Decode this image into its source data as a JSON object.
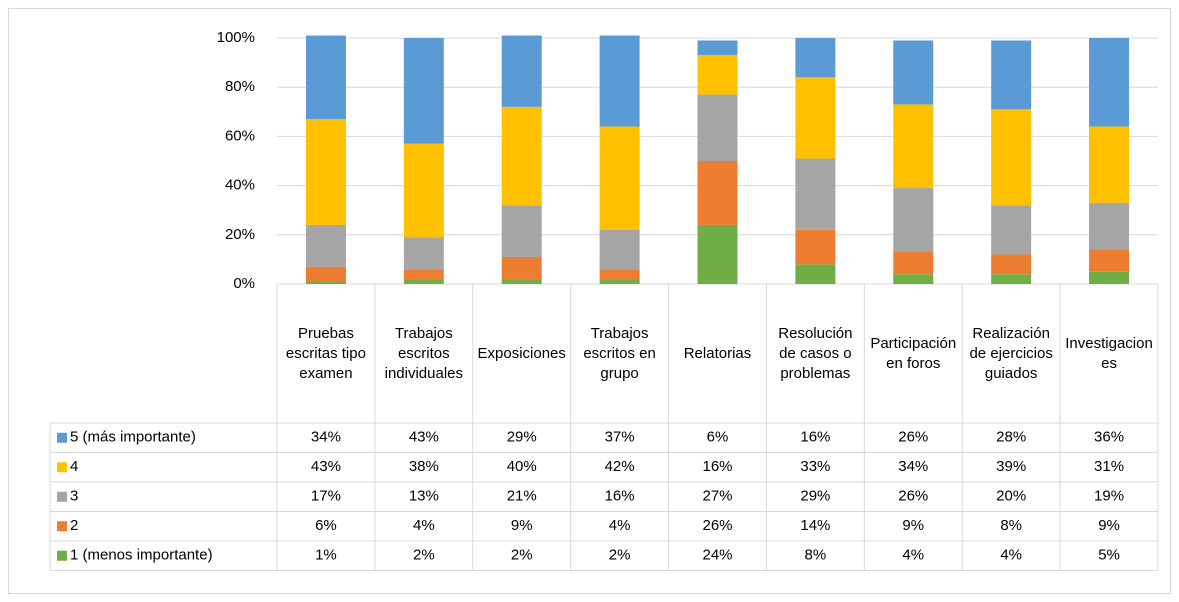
{
  "chart_data": {
    "type": "bar",
    "stacked": true,
    "categories": [
      "Pruebas escritas tipo examen",
      "Trabajos escritos individuales",
      "Exposiciones",
      "Trabajos escritos en grupo",
      "Relatorias",
      "Resolución de casos o problemas",
      "Participación en foros",
      "Realización de ejercicios guiados",
      "Investigaciones"
    ],
    "series": [
      {
        "name": "5 (más importante)",
        "color": "#5b9bd5",
        "values": [
          34,
          43,
          29,
          37,
          6,
          16,
          26,
          28,
          36
        ],
        "value_labels": [
          "34%",
          "43%",
          "29%",
          "37%",
          "6%",
          "16%",
          "26%",
          "28%",
          "36%"
        ]
      },
      {
        "name": "4",
        "color": "#ffc000",
        "values": [
          43,
          38,
          40,
          42,
          16,
          33,
          34,
          39,
          31
        ],
        "value_labels": [
          "43%",
          "38%",
          "40%",
          "42%",
          "16%",
          "33%",
          "34%",
          "39%",
          "31%"
        ]
      },
      {
        "name": "3",
        "color": "#a5a5a5",
        "values": [
          17,
          13,
          21,
          16,
          27,
          29,
          26,
          20,
          19
        ],
        "value_labels": [
          "17%",
          "13%",
          "21%",
          "16%",
          "27%",
          "29%",
          "26%",
          "20%",
          "19%"
        ]
      },
      {
        "name": "2",
        "color": "#ed7d31",
        "values": [
          6,
          4,
          9,
          4,
          26,
          14,
          9,
          8,
          9
        ],
        "value_labels": [
          "6%",
          "4%",
          "9%",
          "4%",
          "26%",
          "14%",
          "9%",
          "8%",
          "9%"
        ]
      },
      {
        "name": "1 (menos importante)",
        "color": "#70ad47",
        "values": [
          1,
          2,
          2,
          2,
          24,
          8,
          4,
          4,
          5
        ],
        "value_labels": [
          "1%",
          "2%",
          "2%",
          "2%",
          "24%",
          "8%",
          "4%",
          "4%",
          "5%"
        ]
      }
    ],
    "ylim": [
      0,
      100
    ],
    "yticks": [
      {
        "value": 0,
        "label": "0%"
      },
      {
        "value": 20,
        "label": "20%"
      },
      {
        "value": 40,
        "label": "40%"
      },
      {
        "value": 60,
        "label": "60%"
      },
      {
        "value": 80,
        "label": "80%"
      },
      {
        "value": 100,
        "label": "100%"
      }
    ],
    "grid": true
  }
}
